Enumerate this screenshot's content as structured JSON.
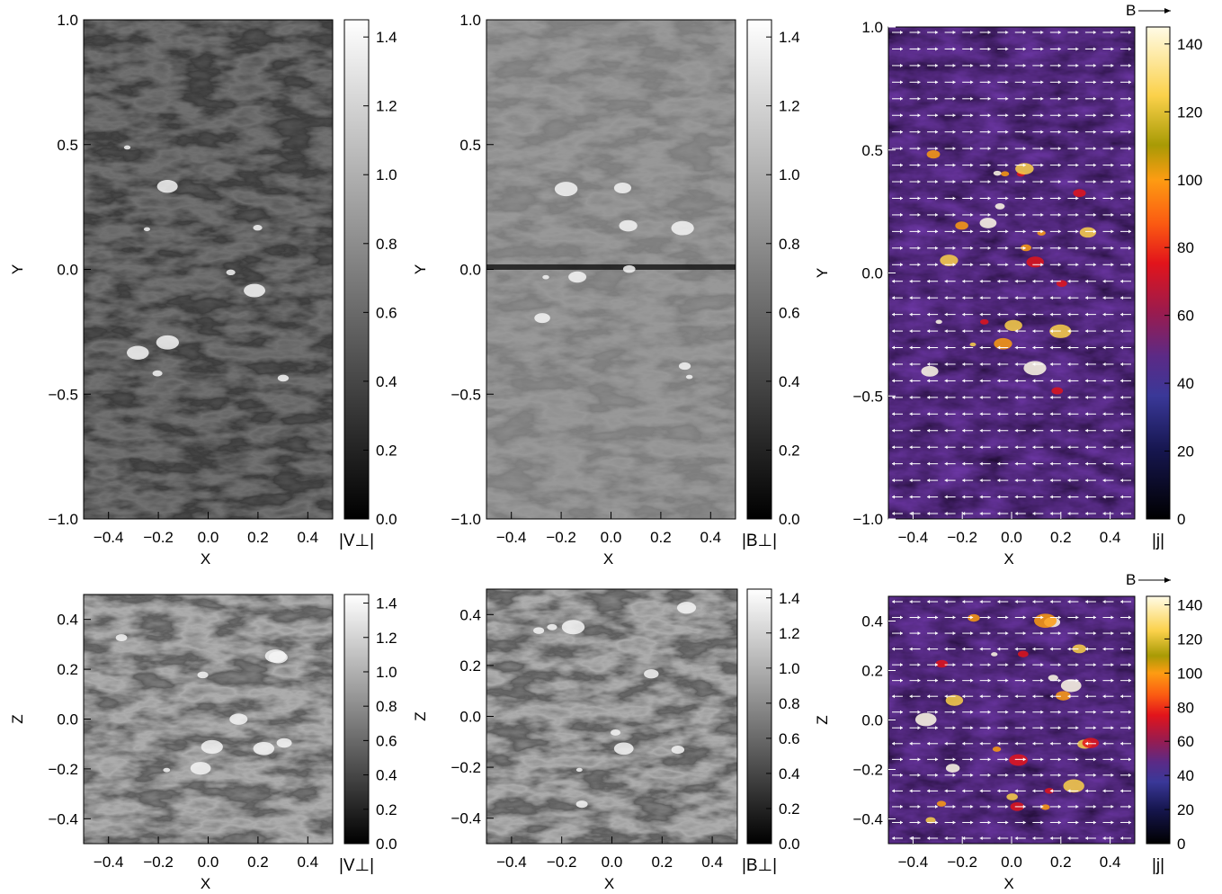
{
  "chart_data": [
    {
      "type": "heatmap",
      "colormap": "gray",
      "grid": false,
      "xlabel": "X",
      "ylabel": "Y",
      "colorbar_label": "|V⊥|",
      "xlim": [
        -0.5,
        0.5
      ],
      "ylim": [
        -1.0,
        1.0
      ],
      "clim": [
        0.0,
        1.45
      ],
      "xticks": [
        -0.4,
        -0.2,
        0.0,
        0.2,
        0.4
      ],
      "yticks": [
        -1.0,
        -0.5,
        0.0,
        0.5,
        1.0
      ],
      "cticks": [
        0.0,
        0.2,
        0.4,
        0.6,
        0.8,
        1.0,
        1.2,
        1.4
      ]
    },
    {
      "type": "heatmap",
      "colormap": "gray",
      "grid": false,
      "xlabel": "X",
      "ylabel": "Y",
      "colorbar_label": "|B⊥|",
      "xlim": [
        -0.5,
        0.5
      ],
      "ylim": [
        -1.0,
        1.0
      ],
      "clim": [
        0.0,
        1.45
      ],
      "xticks": [
        -0.4,
        -0.2,
        0.0,
        0.2,
        0.4
      ],
      "yticks": [
        -1.0,
        -0.5,
        0.0,
        0.5,
        1.0
      ],
      "cticks": [
        0.0,
        0.2,
        0.4,
        0.6,
        0.8,
        1.0,
        1.2,
        1.4
      ]
    },
    {
      "type": "heatmap",
      "colormap": "heat",
      "grid": false,
      "xlabel": "X",
      "ylabel": "Y",
      "colorbar_label": "|j|",
      "vector_label": "B",
      "xlim": [
        -0.5,
        0.5
      ],
      "ylim": [
        -1.0,
        1.0
      ],
      "clim": [
        0,
        145
      ],
      "xticks": [
        -0.4,
        -0.2,
        0.0,
        0.2,
        0.4
      ],
      "yticks": [
        -1.0,
        -0.5,
        0.0,
        0.5,
        1.0
      ],
      "cticks": [
        0,
        20,
        40,
        60,
        80,
        100,
        120,
        140
      ]
    },
    {
      "type": "heatmap",
      "colormap": "gray",
      "grid": false,
      "xlabel": "X",
      "ylabel": "Z",
      "colorbar_label": "|V⊥|",
      "xlim": [
        -0.5,
        0.5
      ],
      "ylim": [
        -0.5,
        0.5
      ],
      "clim": [
        0.0,
        1.45
      ],
      "xticks": [
        -0.4,
        -0.2,
        0.0,
        0.2,
        0.4
      ],
      "yticks": [
        -0.4,
        -0.2,
        0.0,
        0.2,
        0.4
      ],
      "cticks": [
        0.0,
        0.2,
        0.4,
        0.6,
        0.8,
        1.0,
        1.2,
        1.4
      ]
    },
    {
      "type": "heatmap",
      "colormap": "gray",
      "grid": false,
      "xlabel": "X",
      "ylabel": "Z",
      "colorbar_label": "|B⊥|",
      "xlim": [
        -0.5,
        0.5
      ],
      "ylim": [
        -0.5,
        0.5
      ],
      "clim": [
        0.0,
        1.45
      ],
      "xticks": [
        -0.4,
        -0.2,
        0.0,
        0.2,
        0.4
      ],
      "yticks": [
        -0.4,
        -0.2,
        0.0,
        0.2,
        0.4
      ],
      "cticks": [
        0.0,
        0.2,
        0.4,
        0.6,
        0.8,
        1.0,
        1.2,
        1.4
      ]
    },
    {
      "type": "heatmap",
      "colormap": "heat",
      "grid": false,
      "xlabel": "X",
      "ylabel": "Z",
      "colorbar_label": "|j|",
      "vector_label": "B",
      "xlim": [
        -0.5,
        0.5
      ],
      "ylim": [
        -0.5,
        0.5
      ],
      "clim": [
        0,
        145
      ],
      "xticks": [
        -0.4,
        -0.2,
        0.0,
        0.2,
        0.4
      ],
      "yticks": [
        -0.4,
        -0.2,
        0.0,
        0.2,
        0.4
      ],
      "cticks": [
        0,
        20,
        40,
        60,
        80,
        100,
        120,
        140
      ]
    }
  ]
}
